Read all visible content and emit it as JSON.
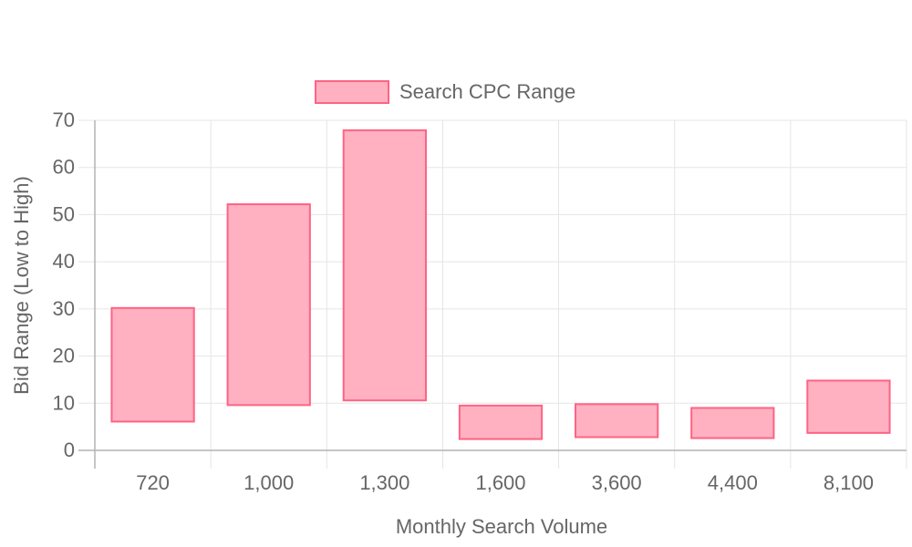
{
  "chart_data": {
    "type": "bar",
    "subtype": "floating-range",
    "title": "",
    "xlabel": "Monthly Search Volume",
    "ylabel": "Bid Range (Low to High)",
    "categories": [
      "720",
      "1,000",
      "1,300",
      "1,600",
      "3,600",
      "4,400",
      "8,100"
    ],
    "series": [
      {
        "name": "Search CPC Range",
        "ranges": [
          [
            6.1,
            30.2
          ],
          [
            9.6,
            52.2
          ],
          [
            10.6,
            67.9
          ],
          [
            2.4,
            9.5
          ],
          [
            2.8,
            9.8
          ],
          [
            2.6,
            9.0
          ],
          [
            3.7,
            14.8
          ]
        ],
        "fill_color": "#ffb1c1",
        "border_color": "#ff6384"
      }
    ],
    "ylim": [
      0,
      70
    ],
    "yticks": [
      0,
      10,
      20,
      30,
      40,
      50,
      60,
      70
    ],
    "grid": true,
    "legend_position": "top-center",
    "colors": {
      "grid": "#e5e5e5",
      "axis": "#b3b3b3",
      "text": "#666666"
    }
  }
}
